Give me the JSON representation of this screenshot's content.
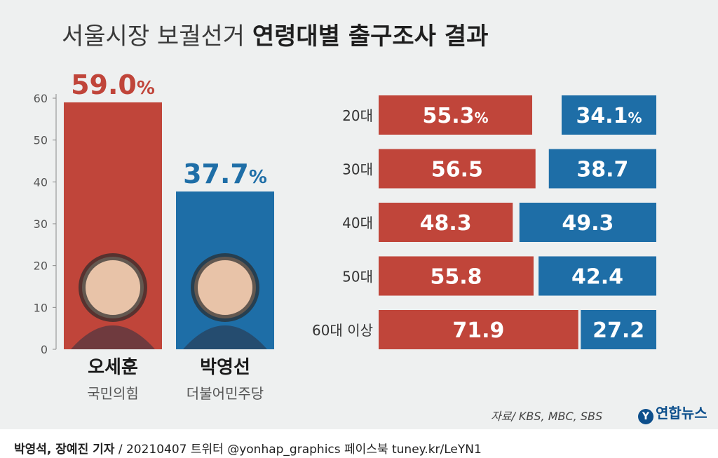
{
  "title": {
    "part1": "서울시장 보궐선거",
    "part2": "연령대별 출구조사 결과"
  },
  "colors": {
    "red": "#c0453a",
    "blue": "#1e6ea7",
    "background": "#eef0f0"
  },
  "chart_data": [
    {
      "type": "bar",
      "yticks": [
        "0",
        "10",
        "20",
        "30",
        "40",
        "50",
        "60"
      ],
      "ylim": [
        0,
        60
      ],
      "series": [
        {
          "name": "오세훈",
          "party": "국민의힘",
          "value": 59.0,
          "label": "59.0",
          "unit": "%",
          "color": "#c0453a",
          "photo_icon": "candidate-photo-icon"
        },
        {
          "name": "박영선",
          "party": "더불어민주당",
          "value": 37.7,
          "label": "37.7",
          "unit": "%",
          "color": "#1e6ea7",
          "photo_icon": "candidate-photo-icon"
        }
      ]
    },
    {
      "type": "bar",
      "orientation": "horizontal-stacked",
      "categories": [
        "20대",
        "30대",
        "40대",
        "50대",
        "60대 이상"
      ],
      "series": [
        {
          "name": "오세훈",
          "values": [
            55.3,
            56.5,
            48.3,
            55.8,
            71.9
          ],
          "labels": [
            "55.3",
            "56.5",
            "48.3",
            "55.8",
            "71.9"
          ],
          "color": "#c0453a"
        },
        {
          "name": "박영선",
          "values": [
            34.1,
            38.7,
            49.3,
            42.4,
            27.2
          ],
          "labels": [
            "34.1",
            "38.7",
            "49.3",
            "42.4",
            "27.2"
          ],
          "color": "#1e6ea7"
        }
      ],
      "first_row_unit": "%"
    }
  ],
  "source": "자료/ KBS, MBC, SBS",
  "logo": "연합뉴스",
  "footer": {
    "authors": "박영석, 장예진 기자",
    "rest": " / 20210407 트위터 @yonhap_graphics  페이스북 tuney.kr/LeYN1"
  }
}
